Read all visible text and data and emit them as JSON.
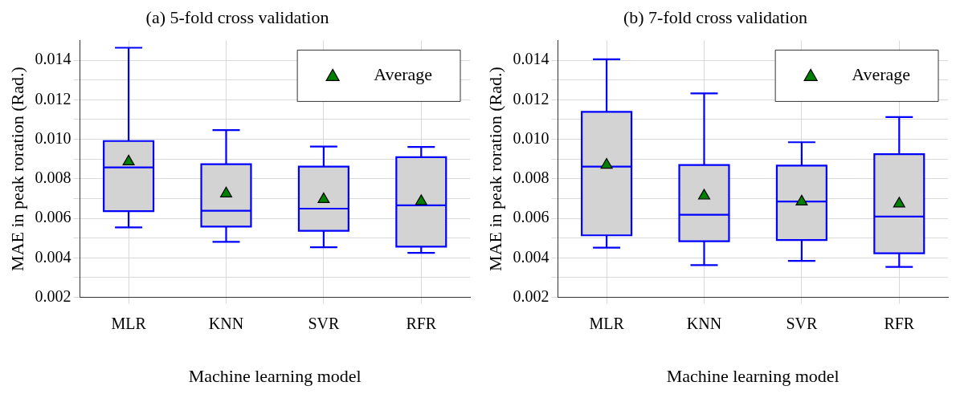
{
  "chart_data": [
    {
      "type": "box",
      "title": "(a) 5-fold cross validation",
      "xlabel": "Machine learning model",
      "ylabel": "MAE in peak roration (Rad.)",
      "categories": [
        "MLR",
        "KNN",
        "SVR",
        "RFR"
      ],
      "ylim": [
        0.002,
        0.015
      ],
      "yticks": [
        {
          "value": 0.002,
          "label": "0.002"
        },
        {
          "value": 0.003,
          "label": null
        },
        {
          "value": 0.004,
          "label": "0.004"
        },
        {
          "value": 0.005,
          "label": null
        },
        {
          "value": 0.006,
          "label": "0.006"
        },
        {
          "value": 0.007,
          "label": null
        },
        {
          "value": 0.008,
          "label": "0.008"
        },
        {
          "value": 0.009,
          "label": null
        },
        {
          "value": 0.01,
          "label": "0.010"
        },
        {
          "value": 0.011,
          "label": null
        },
        {
          "value": 0.012,
          "label": "0.012"
        },
        {
          "value": 0.013,
          "label": null
        },
        {
          "value": 0.014,
          "label": "0.014"
        }
      ],
      "grid": true,
      "legend": "top right",
      "series": [
        {
          "color": "#d3d3d3",
          "boxes": [
            {
              "low": 0.00554,
              "q1": 0.00636,
              "median": 0.00858,
              "q3": 0.00991,
              "high": 0.01463
            },
            {
              "low": 0.00481,
              "q1": 0.00558,
              "median": 0.00638,
              "q3": 0.00874,
              "high": 0.01046
            },
            {
              "low": 0.00454,
              "q1": 0.00537,
              "median": 0.00649,
              "q3": 0.00862,
              "high": 0.00963
            },
            {
              "low": 0.00425,
              "q1": 0.00457,
              "median": 0.00666,
              "q3": 0.00909,
              "high": 0.00961
            }
          ]
        },
        {
          "type": "scatter",
          "name": "Average",
          "color": "#008000",
          "marker": "triangle",
          "x": [
            "MLR",
            "KNN",
            "SVR",
            "RFR"
          ],
          "values": [
            0.00887,
            0.00725,
            0.00696,
            0.00686
          ]
        }
      ]
    },
    {
      "type": "box",
      "title": "(b) 7-fold cross validation",
      "xlabel": "Machine learning model",
      "ylabel": "MAE in peak roration (Rad.)",
      "categories": [
        "MLR",
        "KNN",
        "SVR",
        "RFR"
      ],
      "ylim": [
        0.002,
        0.015
      ],
      "yticks": [
        {
          "value": 0.002,
          "label": "0.002"
        },
        {
          "value": 0.003,
          "label": null
        },
        {
          "value": 0.004,
          "label": "0.004"
        },
        {
          "value": 0.005,
          "label": null
        },
        {
          "value": 0.006,
          "label": "0.006"
        },
        {
          "value": 0.007,
          "label": null
        },
        {
          "value": 0.008,
          "label": "0.008"
        },
        {
          "value": 0.009,
          "label": null
        },
        {
          "value": 0.01,
          "label": "0.010"
        },
        {
          "value": 0.011,
          "label": null
        },
        {
          "value": 0.012,
          "label": "0.012"
        },
        {
          "value": 0.013,
          "label": null
        },
        {
          "value": 0.014,
          "label": "0.014"
        }
      ],
      "grid": true,
      "legend": "top right",
      "series": [
        {
          "color": "#d3d3d3",
          "boxes": [
            {
              "low": 0.00452,
              "q1": 0.00514,
              "median": 0.00862,
              "q3": 0.01139,
              "high": 0.01405
            },
            {
              "low": 0.00363,
              "q1": 0.00484,
              "median": 0.00618,
              "q3": 0.0087,
              "high": 0.01232
            },
            {
              "low": 0.00385,
              "q1": 0.0049,
              "median": 0.00685,
              "q3": 0.00867,
              "high": 0.00985
            },
            {
              "low": 0.00354,
              "q1": 0.00423,
              "median": 0.00609,
              "q3": 0.00925,
              "high": 0.01112
            }
          ]
        },
        {
          "type": "scatter",
          "name": "Average",
          "color": "#008000",
          "marker": "triangle",
          "x": [
            "MLR",
            "KNN",
            "SVR",
            "RFR"
          ],
          "values": [
            0.0087,
            0.00714,
            0.00684,
            0.00674
          ]
        }
      ]
    }
  ]
}
